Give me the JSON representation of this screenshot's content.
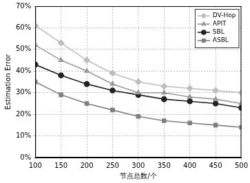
{
  "chart_data": {
    "type": "line",
    "x_label": "节点总数/个",
    "y_label": "Estimation Error",
    "x": [
      100,
      150,
      200,
      250,
      300,
      350,
      400,
      450,
      500
    ],
    "series": [
      {
        "name": "DV-Hop",
        "color": "#bdbdbd",
        "marker": "diamond",
        "values": [
          61,
          53,
          45,
          39,
          35,
          33,
          32,
          31,
          30
        ]
      },
      {
        "name": "APIT",
        "color": "#9a9a9a",
        "marker": "triangle",
        "values": [
          52,
          45,
          40,
          34,
          30,
          30,
          28,
          27,
          25
        ]
      },
      {
        "name": "SBL",
        "color": "#222222",
        "marker": "circle",
        "values": [
          43,
          38,
          34,
          31,
          29,
          27,
          26,
          25,
          23
        ]
      },
      {
        "name": "ASBL",
        "color": "#7f7f7f",
        "marker": "square",
        "values": [
          35,
          29,
          25,
          22,
          19,
          17,
          16,
          15,
          14
        ]
      }
    ],
    "xlim": [
      100,
      500
    ],
    "xticks": [
      100,
      150,
      200,
      250,
      300,
      350,
      400,
      450,
      500
    ],
    "ylim": [
      0,
      70
    ],
    "yticks": [
      {
        "value": 0,
        "label": "0%"
      },
      {
        "value": 10,
        "label": "10%"
      },
      {
        "value": 20,
        "label": "20%"
      },
      {
        "value": 30,
        "label": "30%"
      },
      {
        "value": 40,
        "label": "40%"
      },
      {
        "value": 50,
        "label": "50%"
      },
      {
        "value": 60,
        "label": "60%"
      },
      {
        "value": 70,
        "label": "70%"
      }
    ],
    "grid": true,
    "legend": "upper right"
  }
}
